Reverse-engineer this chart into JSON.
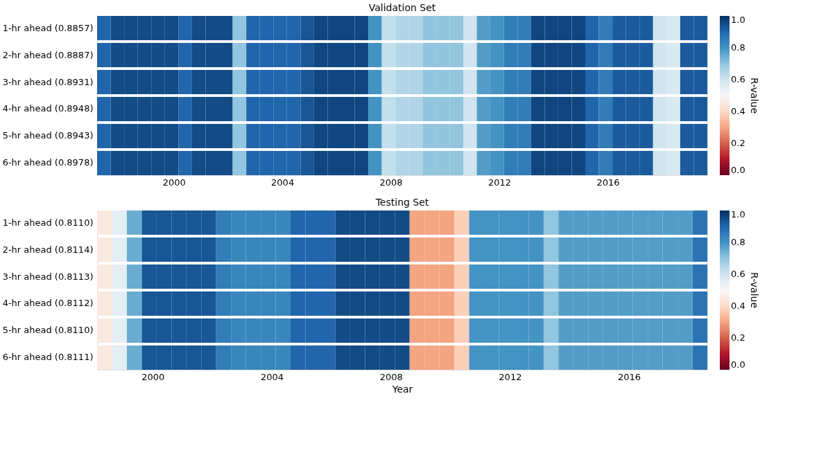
{
  "chart_data": [
    {
      "type": "heatmap",
      "title": "Validation Set",
      "clabel": "R-value",
      "y_categories": [
        "1-hr ahead (0.8857)",
        "2-hr ahead (0.8887)",
        "3-hr ahead (0.8931)",
        "4-hr ahead (0.8948)",
        "5-hr ahead (0.8943)",
        "6-hr ahead (0.8978)"
      ],
      "x": [
        1997.42,
        1997.92,
        1998.42,
        1998.92,
        1999.42,
        1999.92,
        2000.42,
        2000.92,
        2001.42,
        2001.92,
        2002.42,
        2002.92,
        2003.42,
        2003.92,
        2004.42,
        2004.92,
        2005.42,
        2005.92,
        2006.42,
        2006.92,
        2007.42,
        2007.92,
        2008.42,
        2008.92,
        2009.42,
        2009.92,
        2010.42,
        2010.92,
        2011.42,
        2011.92,
        2012.42,
        2012.92,
        2013.42,
        2013.92,
        2014.42,
        2014.92,
        2015.42,
        2015.92,
        2016.42,
        2016.92,
        2017.42,
        2017.92,
        2018.42,
        2018.92,
        2019.42
      ],
      "xlim": [
        1997.17,
        2019.67
      ],
      "xticks": [
        2000,
        2004,
        2008,
        2012,
        2016
      ],
      "cells": [
        [
          0.9,
          0.95,
          0.95,
          0.95,
          0.95,
          0.95,
          0.9,
          0.95,
          0.95,
          0.95,
          0.7,
          0.9,
          0.9,
          0.9,
          0.9,
          0.93,
          0.96,
          0.96,
          0.96,
          0.96,
          0.8,
          0.62,
          0.65,
          0.65,
          0.7,
          0.7,
          0.7,
          0.6,
          0.78,
          0.8,
          0.85,
          0.85,
          0.96,
          0.96,
          0.96,
          0.96,
          0.9,
          0.85,
          0.92,
          0.92,
          0.92,
          0.6,
          0.58,
          0.92,
          0.92
        ],
        [
          0.9,
          0.95,
          0.95,
          0.95,
          0.95,
          0.95,
          0.9,
          0.95,
          0.95,
          0.95,
          0.7,
          0.9,
          0.9,
          0.9,
          0.9,
          0.93,
          0.96,
          0.96,
          0.96,
          0.96,
          0.8,
          0.62,
          0.65,
          0.65,
          0.7,
          0.7,
          0.7,
          0.6,
          0.78,
          0.8,
          0.85,
          0.85,
          0.96,
          0.96,
          0.96,
          0.96,
          0.9,
          0.85,
          0.92,
          0.92,
          0.92,
          0.6,
          0.58,
          0.92,
          0.92
        ],
        [
          0.9,
          0.95,
          0.95,
          0.95,
          0.95,
          0.95,
          0.9,
          0.95,
          0.95,
          0.95,
          0.7,
          0.9,
          0.9,
          0.9,
          0.9,
          0.93,
          0.96,
          0.96,
          0.96,
          0.96,
          0.8,
          0.62,
          0.65,
          0.65,
          0.7,
          0.7,
          0.7,
          0.6,
          0.78,
          0.8,
          0.85,
          0.85,
          0.96,
          0.96,
          0.96,
          0.96,
          0.9,
          0.85,
          0.92,
          0.92,
          0.92,
          0.6,
          0.58,
          0.92,
          0.92
        ],
        [
          0.9,
          0.95,
          0.95,
          0.95,
          0.95,
          0.95,
          0.9,
          0.95,
          0.95,
          0.95,
          0.7,
          0.9,
          0.9,
          0.9,
          0.9,
          0.93,
          0.96,
          0.96,
          0.96,
          0.96,
          0.8,
          0.62,
          0.65,
          0.65,
          0.7,
          0.7,
          0.7,
          0.6,
          0.78,
          0.8,
          0.85,
          0.85,
          0.96,
          0.96,
          0.96,
          0.96,
          0.9,
          0.85,
          0.92,
          0.92,
          0.92,
          0.6,
          0.58,
          0.92,
          0.92
        ],
        [
          0.9,
          0.95,
          0.95,
          0.95,
          0.95,
          0.95,
          0.9,
          0.95,
          0.95,
          0.95,
          0.7,
          0.9,
          0.9,
          0.9,
          0.9,
          0.93,
          0.96,
          0.96,
          0.96,
          0.96,
          0.8,
          0.62,
          0.65,
          0.65,
          0.7,
          0.7,
          0.7,
          0.6,
          0.78,
          0.8,
          0.85,
          0.85,
          0.96,
          0.96,
          0.96,
          0.96,
          0.9,
          0.85,
          0.92,
          0.92,
          0.92,
          0.6,
          0.58,
          0.92,
          0.92
        ],
        [
          0.9,
          0.95,
          0.95,
          0.95,
          0.95,
          0.95,
          0.9,
          0.95,
          0.95,
          0.95,
          0.7,
          0.9,
          0.9,
          0.9,
          0.9,
          0.93,
          0.96,
          0.96,
          0.96,
          0.96,
          0.8,
          0.62,
          0.65,
          0.65,
          0.7,
          0.7,
          0.7,
          0.6,
          0.78,
          0.8,
          0.85,
          0.85,
          0.96,
          0.96,
          0.96,
          0.96,
          0.9,
          0.85,
          0.92,
          0.92,
          0.92,
          0.6,
          0.58,
          0.92,
          0.92
        ]
      ],
      "clim": [
        0,
        1
      ],
      "cticks": [
        {
          "value": 0,
          "label": "0.0"
        },
        {
          "value": 0.2,
          "label": "0.2"
        },
        {
          "value": 0.4,
          "label": "0.4"
        },
        {
          "value": 0.6,
          "label": "0.6"
        },
        {
          "value": 0.8,
          "label": "0.8"
        },
        {
          "value": 1,
          "label": "1.0"
        }
      ]
    },
    {
      "type": "heatmap",
      "title": "Testing Set",
      "clabel": "R-value",
      "xlabel": "Year",
      "y_categories": [
        "1-hr ahead (0.8110)",
        "2-hr ahead (0.8114)",
        "3-hr ahead (0.8113)",
        "4-hr ahead (0.8112)",
        "5-hr ahead (0.8110)",
        "6-hr ahead (0.8111)"
      ],
      "x": [
        1998.38,
        1998.88,
        1999.38,
        1999.88,
        2000.38,
        2000.88,
        2001.38,
        2001.88,
        2002.38,
        2002.88,
        2003.38,
        2003.88,
        2004.38,
        2004.88,
        2005.38,
        2005.88,
        2006.38,
        2006.88,
        2007.38,
        2007.88,
        2008.38,
        2008.88,
        2009.38,
        2009.88,
        2010.38,
        2010.88,
        2011.38,
        2011.88,
        2012.38,
        2012.88,
        2013.38,
        2013.88,
        2014.38,
        2014.88,
        2015.38,
        2015.88,
        2016.38,
        2016.88,
        2017.38,
        2017.88,
        2018.38
      ],
      "xlim": [
        1998.13,
        2018.63
      ],
      "xticks": [
        2000,
        2004,
        2008,
        2012,
        2016
      ],
      "cells": [
        [
          0.45,
          0.55,
          0.75,
          0.93,
          0.93,
          0.93,
          0.93,
          0.93,
          0.85,
          0.83,
          0.83,
          0.83,
          0.83,
          0.9,
          0.9,
          0.9,
          0.95,
          0.95,
          0.95,
          0.95,
          0.95,
          0.3,
          0.3,
          0.3,
          0.38,
          0.8,
          0.8,
          0.8,
          0.8,
          0.8,
          0.7,
          0.78,
          0.78,
          0.78,
          0.78,
          0.78,
          0.78,
          0.78,
          0.78,
          0.78,
          0.87
        ],
        [
          0.45,
          0.55,
          0.75,
          0.93,
          0.93,
          0.93,
          0.93,
          0.93,
          0.85,
          0.83,
          0.83,
          0.83,
          0.83,
          0.9,
          0.9,
          0.9,
          0.95,
          0.95,
          0.95,
          0.95,
          0.95,
          0.3,
          0.3,
          0.3,
          0.38,
          0.8,
          0.8,
          0.8,
          0.8,
          0.8,
          0.7,
          0.78,
          0.78,
          0.78,
          0.78,
          0.78,
          0.78,
          0.78,
          0.78,
          0.78,
          0.87
        ],
        [
          0.45,
          0.55,
          0.75,
          0.93,
          0.93,
          0.93,
          0.93,
          0.93,
          0.85,
          0.83,
          0.83,
          0.83,
          0.83,
          0.9,
          0.9,
          0.9,
          0.95,
          0.95,
          0.95,
          0.95,
          0.95,
          0.3,
          0.3,
          0.3,
          0.38,
          0.8,
          0.8,
          0.8,
          0.8,
          0.8,
          0.7,
          0.78,
          0.78,
          0.78,
          0.78,
          0.78,
          0.78,
          0.78,
          0.78,
          0.78,
          0.87
        ],
        [
          0.45,
          0.55,
          0.75,
          0.93,
          0.93,
          0.93,
          0.93,
          0.93,
          0.85,
          0.83,
          0.83,
          0.83,
          0.83,
          0.9,
          0.9,
          0.9,
          0.95,
          0.95,
          0.95,
          0.95,
          0.95,
          0.3,
          0.3,
          0.3,
          0.38,
          0.8,
          0.8,
          0.8,
          0.8,
          0.8,
          0.7,
          0.78,
          0.78,
          0.78,
          0.78,
          0.78,
          0.78,
          0.78,
          0.78,
          0.78,
          0.87
        ],
        [
          0.45,
          0.55,
          0.75,
          0.93,
          0.93,
          0.93,
          0.93,
          0.93,
          0.85,
          0.83,
          0.83,
          0.83,
          0.83,
          0.9,
          0.9,
          0.9,
          0.95,
          0.95,
          0.95,
          0.95,
          0.95,
          0.3,
          0.3,
          0.3,
          0.38,
          0.8,
          0.8,
          0.8,
          0.8,
          0.8,
          0.7,
          0.78,
          0.78,
          0.78,
          0.78,
          0.78,
          0.78,
          0.78,
          0.78,
          0.78,
          0.87
        ],
        [
          0.45,
          0.55,
          0.75,
          0.93,
          0.93,
          0.93,
          0.93,
          0.93,
          0.85,
          0.83,
          0.83,
          0.83,
          0.83,
          0.9,
          0.9,
          0.9,
          0.95,
          0.95,
          0.95,
          0.95,
          0.95,
          0.3,
          0.3,
          0.3,
          0.38,
          0.8,
          0.8,
          0.8,
          0.8,
          0.8,
          0.7,
          0.78,
          0.78,
          0.78,
          0.78,
          0.78,
          0.78,
          0.78,
          0.78,
          0.78,
          0.87
        ]
      ],
      "clim": [
        0,
        1
      ],
      "cticks": [
        {
          "value": 0,
          "label": "0.0"
        },
        {
          "value": 0.2,
          "label": "0.2"
        },
        {
          "value": 0.4,
          "label": "0.4"
        },
        {
          "value": 0.6,
          "label": "0.6"
        },
        {
          "value": 0.8,
          "label": "0.8"
        },
        {
          "value": 1,
          "label": "1.0"
        }
      ]
    }
  ]
}
